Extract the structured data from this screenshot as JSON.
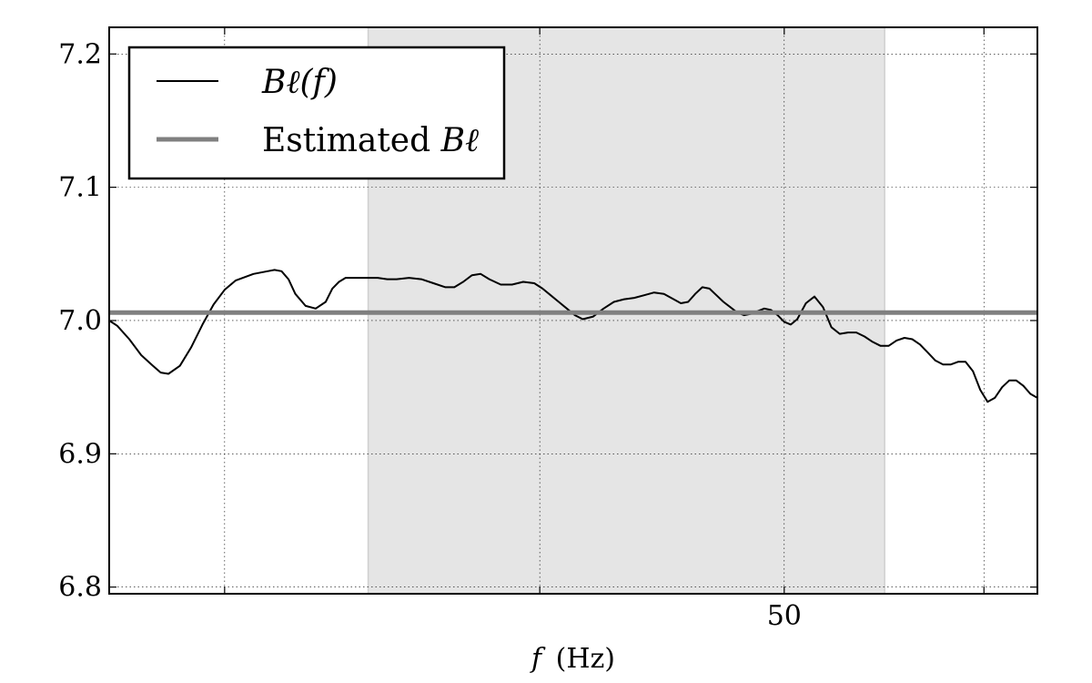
{
  "chart_data": {
    "type": "line",
    "title": "",
    "xlabel": "f (Hz)",
    "xlabel_var": "f",
    "xlabel_unit": "(Hz)",
    "ylabel": "",
    "xscale": "log",
    "xlim": [
      27,
      63
    ],
    "ylim": [
      6.795,
      7.22
    ],
    "yticks": [
      6.8,
      6.9,
      7.0,
      7.1,
      7.2
    ],
    "ytick_labels": [
      "6.8",
      "6.9",
      "7.0",
      "7.1",
      "7.2"
    ],
    "xticks_labeled": [
      50
    ],
    "xtick_labels": [
      "50"
    ],
    "x_minor_gridlines": [
      30,
      40,
      60
    ],
    "grid": true,
    "legend_position": "top-left",
    "shaded_band": {
      "x_start": 34.2,
      "x_end": 54.8,
      "color": "#e5e5e5"
    },
    "series": [
      {
        "name": "Bℓ(f)",
        "legend_var": "Bℓ",
        "legend_arg": "(f)",
        "color": "#000000",
        "x": [
          27.0,
          27.2,
          27.5,
          27.8,
          28.1,
          28.3,
          28.5,
          28.8,
          29.1,
          29.4,
          29.7,
          30.0,
          30.3,
          30.6,
          30.8,
          31.0,
          31.2,
          31.4,
          31.6,
          31.8,
          32.0,
          32.3,
          32.6,
          32.9,
          33.1,
          33.3,
          33.5,
          33.7,
          33.9,
          34.2,
          34.5,
          34.8,
          35.1,
          35.5,
          35.9,
          36.3,
          36.7,
          37.0,
          37.3,
          37.6,
          37.9,
          38.2,
          38.6,
          39.0,
          39.4,
          39.8,
          40.1,
          40.4,
          40.7,
          41.0,
          41.3,
          41.6,
          42.0,
          42.4,
          42.8,
          43.2,
          43.6,
          44.0,
          44.4,
          44.8,
          45.2,
          45.5,
          45.8,
          46.1,
          46.4,
          46.7,
          47.0,
          47.3,
          47.6,
          47.9,
          48.2,
          48.5,
          48.8,
          49.1,
          49.4,
          49.7,
          50.0,
          50.3,
          50.6,
          51.0,
          51.4,
          51.8,
          52.2,
          52.6,
          53.0,
          53.4,
          53.8,
          54.2,
          54.6,
          55.0,
          55.4,
          55.8,
          56.2,
          56.6,
          57.0,
          57.4,
          57.8,
          58.2,
          58.6,
          59.0,
          59.4,
          59.8,
          60.2,
          60.6,
          61.0,
          61.4,
          61.8,
          62.2,
          62.6,
          63.0
        ],
        "y": [
          7.0,
          6.996,
          6.986,
          6.974,
          6.966,
          6.961,
          6.96,
          6.966,
          6.98,
          6.997,
          7.012,
          7.023,
          7.03,
          7.033,
          7.035,
          7.036,
          7.037,
          7.038,
          7.037,
          7.031,
          7.02,
          7.011,
          7.009,
          7.014,
          7.024,
          7.029,
          7.032,
          7.032,
          7.032,
          7.032,
          7.032,
          7.031,
          7.031,
          7.032,
          7.031,
          7.028,
          7.025,
          7.025,
          7.029,
          7.034,
          7.035,
          7.031,
          7.027,
          7.027,
          7.029,
          7.028,
          7.024,
          7.019,
          7.014,
          7.009,
          7.004,
          7.001,
          7.003,
          7.009,
          7.014,
          7.016,
          7.017,
          7.019,
          7.021,
          7.02,
          7.016,
          7.013,
          7.014,
          7.02,
          7.025,
          7.024,
          7.019,
          7.014,
          7.01,
          7.006,
          7.004,
          7.005,
          7.007,
          7.009,
          7.008,
          7.004,
          6.999,
          6.997,
          7.001,
          7.013,
          7.018,
          7.01,
          6.995,
          6.99,
          6.991,
          6.991,
          6.988,
          6.984,
          6.981,
          6.981,
          6.985,
          6.987,
          6.986,
          6.982,
          6.976,
          6.97,
          6.967,
          6.967,
          6.969,
          6.969,
          6.962,
          6.948,
          6.939,
          6.942,
          6.95,
          6.955,
          6.955,
          6.951,
          6.945,
          6.942
        ]
      },
      {
        "name": "Estimated Bℓ",
        "legend_text": "Estimated ",
        "legend_var": "Bℓ",
        "color": "#808080",
        "value": 7.006
      }
    ]
  }
}
